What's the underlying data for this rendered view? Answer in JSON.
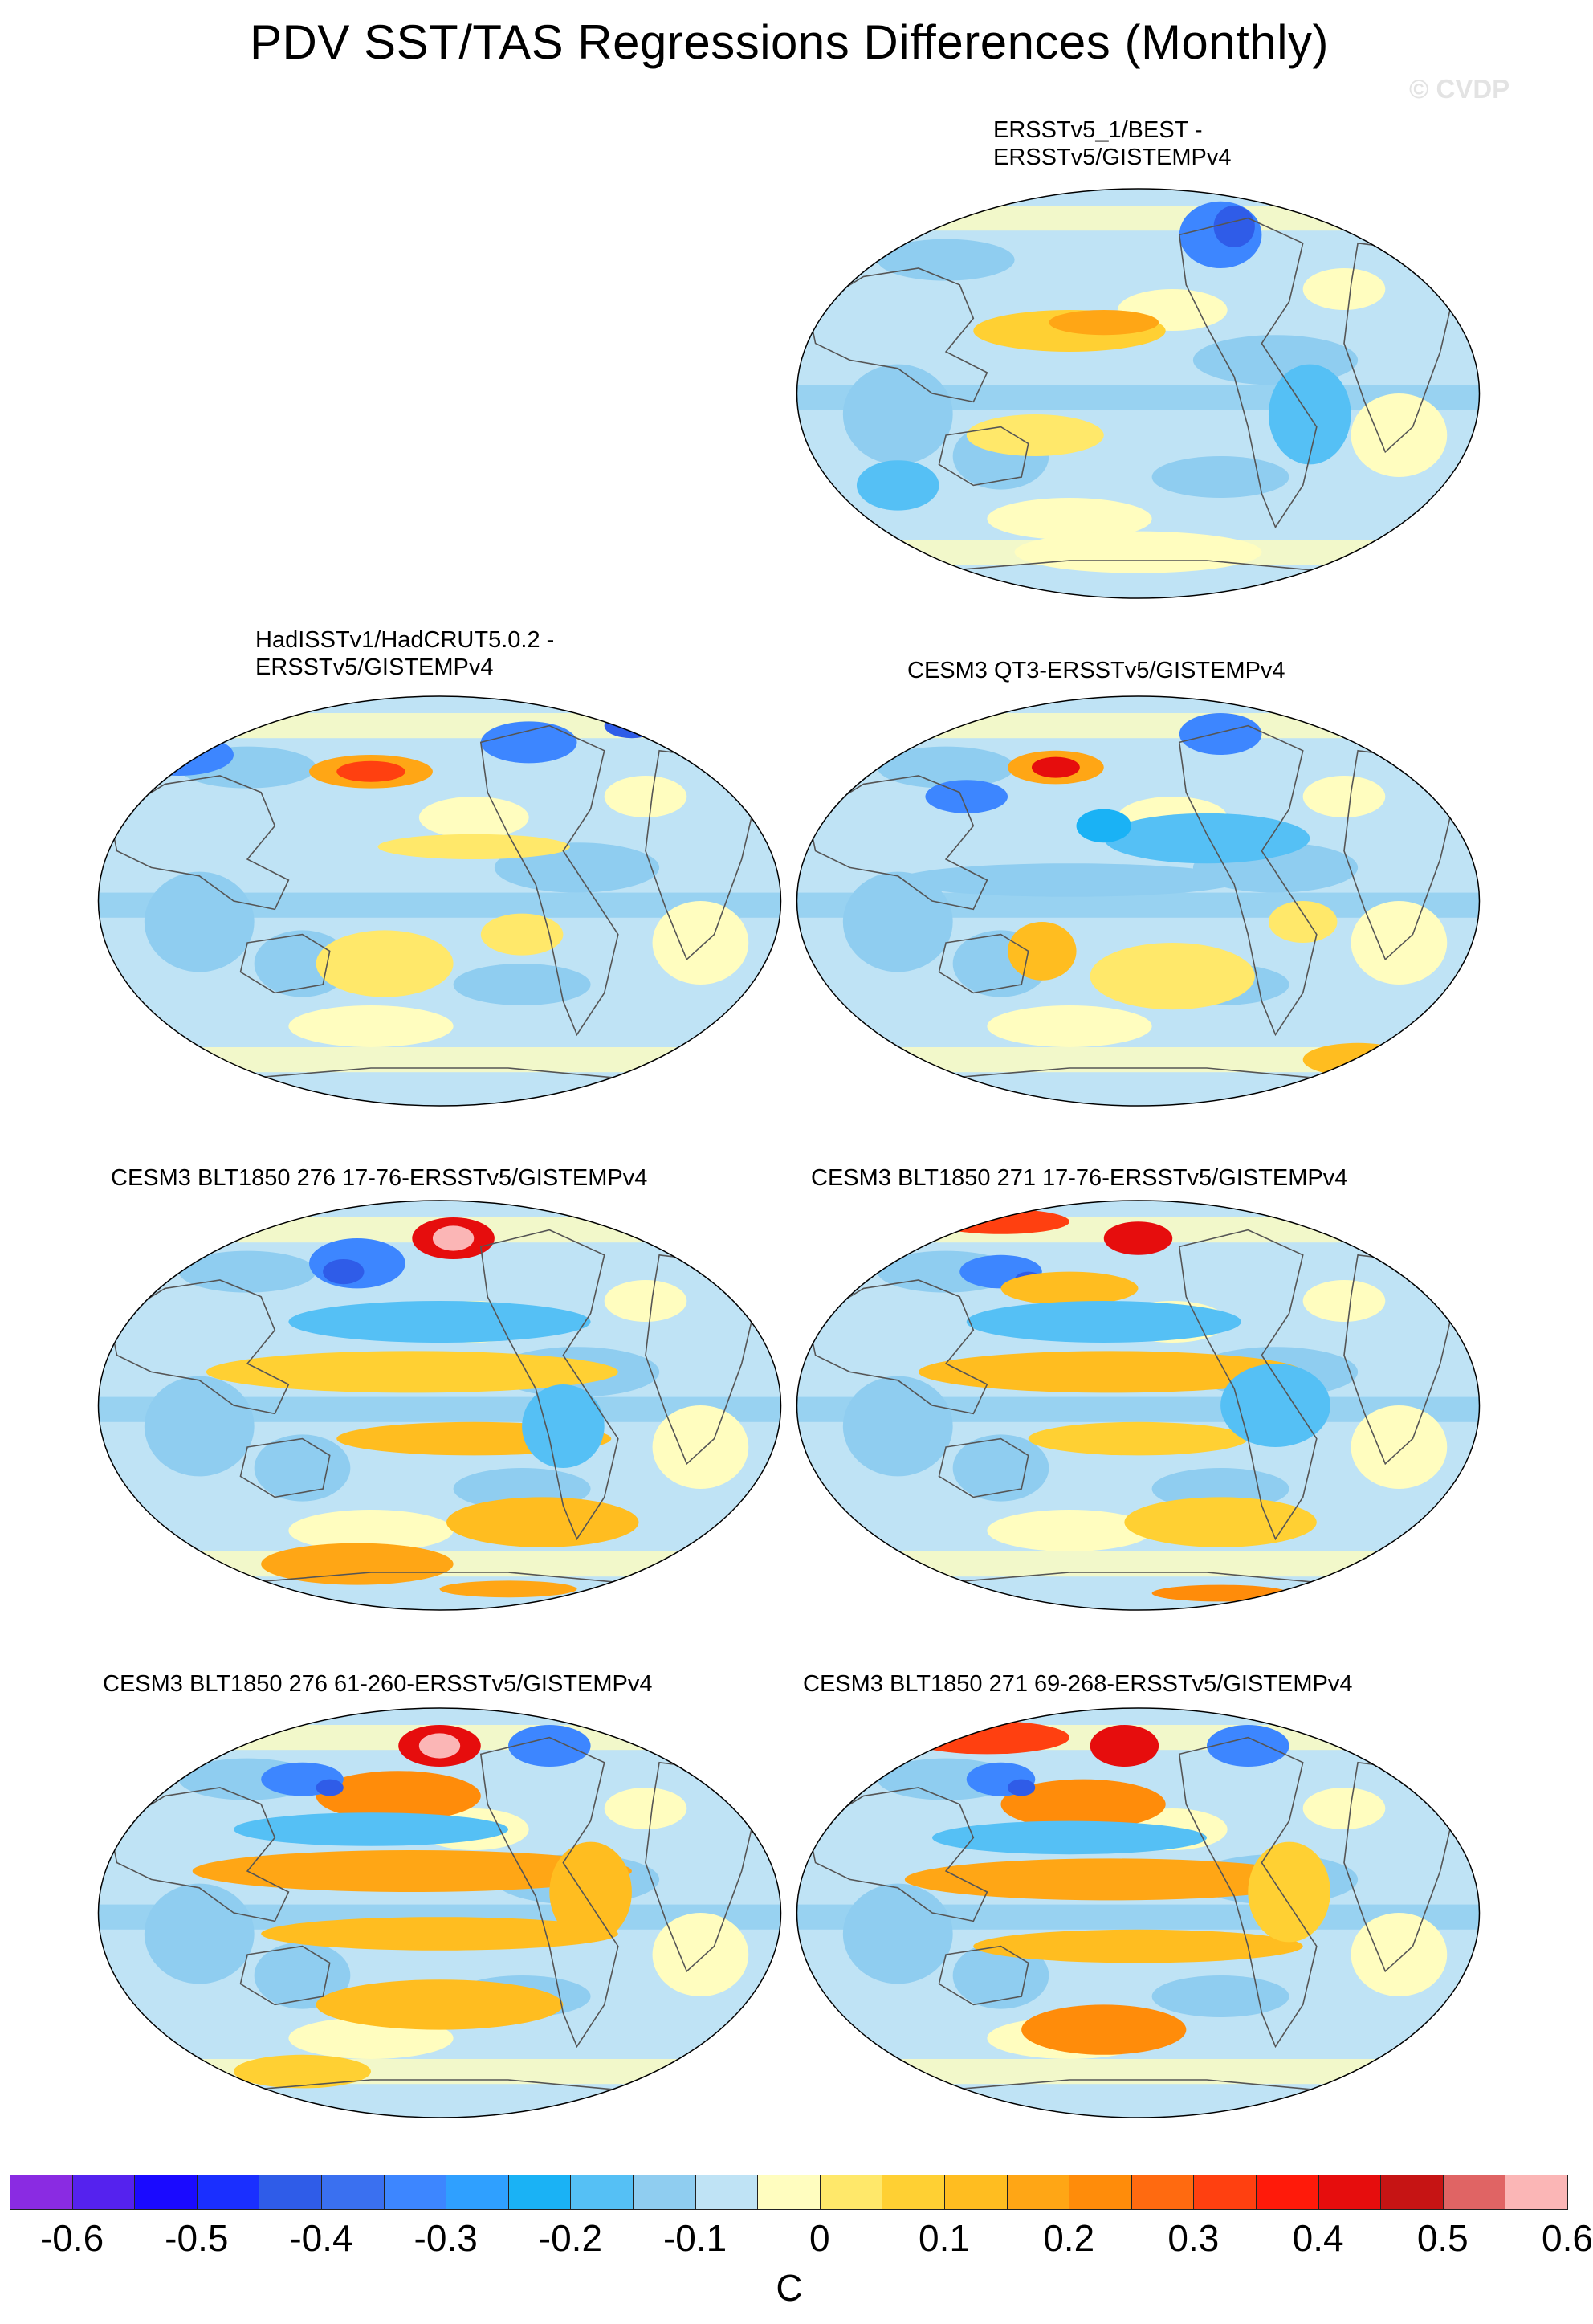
{
  "title": "PDV SST/TAS Regressions Differences (Monthly)",
  "watermark": "© CVDP",
  "panels": [
    {
      "id": "p1",
      "label_lines": [
        "ERSSTv5_1/BEST -",
        "ERSSTv5/GISTEMPv4"
      ]
    },
    {
      "id": "p2",
      "label_lines": [
        "HadISSTv1/HadCRUT5.0.2 -",
        "ERSSTv5/GISTEMPv4"
      ]
    },
    {
      "id": "p3",
      "label_lines": [
        "CESM3 QT3-ERSSTv5/GISTEMPv4"
      ]
    },
    {
      "id": "p4",
      "label_lines": [
        "CESM3 BLT1850 276 17-76-ERSSTv5/GISTEMPv4"
      ]
    },
    {
      "id": "p5",
      "label_lines": [
        "CESM3 BLT1850 271 17-76-ERSSTv5/GISTEMPv4"
      ]
    },
    {
      "id": "p6",
      "label_lines": [
        "CESM3 BLT1850 276 61-260-ERSSTv5/GISTEMPv4"
      ]
    },
    {
      "id": "p7",
      "label_lines": [
        "CESM3 BLT1850 271 69-268-ERSSTv5/GISTEMPv4"
      ]
    }
  ],
  "colorbar": {
    "colors": [
      "#8a2be2",
      "#5522ee",
      "#1a0aff",
      "#1a2fff",
      "#2f5ce8",
      "#3a70f0",
      "#3d86ff",
      "#2fa0ff",
      "#1ab2f5",
      "#55c0f5",
      "#8fcdf0",
      "#bfe3f5",
      "#fffdbf",
      "#ffe86a",
      "#ffd033",
      "#ffbd20",
      "#ffa615",
      "#ff8c0a",
      "#ff6a10",
      "#ff4010",
      "#ff1a0a",
      "#e60d0d",
      "#c61414",
      "#e06464",
      "#fbb6b6"
    ],
    "tick_labels": [
      "-0.6",
      "-0.5",
      "-0.4",
      "-0.3",
      "-0.2",
      "-0.1",
      "0",
      "0.1",
      "0.2",
      "0.3",
      "0.4",
      "0.5",
      "0.6"
    ],
    "unit": "C"
  }
}
